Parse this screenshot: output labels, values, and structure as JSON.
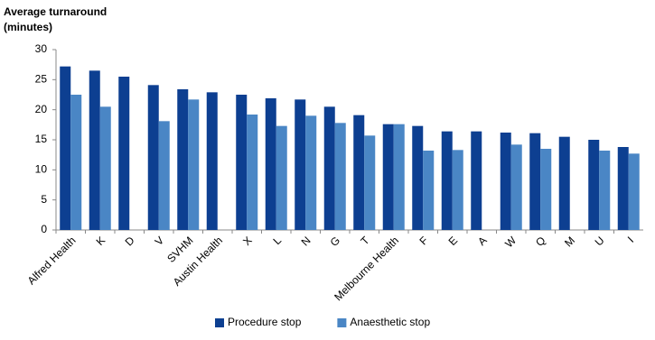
{
  "chart_data": {
    "type": "bar",
    "y_label": [
      "Average turnaround",
      "(minutes)"
    ],
    "categories": [
      "Alfred Health",
      "K",
      "D",
      "V",
      "SVHM",
      "Austin Health",
      "X",
      "L",
      "N",
      "G",
      "T",
      "Melbourne Health",
      "F",
      "E",
      "A",
      "W",
      "Q",
      "M",
      "U",
      "I"
    ],
    "series": [
      {
        "name": "Procedure stop",
        "color": "#0d3f91",
        "values": [
          27.2,
          26.5,
          25.5,
          24.1,
          23.4,
          22.9,
          22.5,
          21.9,
          21.7,
          20.5,
          19.1,
          17.6,
          17.3,
          16.4,
          16.4,
          16.2,
          16.1,
          15.5,
          15.0,
          13.8
        ]
      },
      {
        "name": "Anaesthetic stop",
        "color": "#4a86c5",
        "values": [
          22.5,
          20.5,
          null,
          18.1,
          21.7,
          null,
          19.2,
          17.3,
          19.0,
          17.8,
          15.7,
          17.6,
          13.2,
          13.3,
          null,
          14.2,
          13.5,
          null,
          13.2,
          12.7
        ]
      }
    ],
    "ylim": [
      0,
      30
    ],
    "yticks": [
      0,
      5,
      10,
      15,
      20,
      25,
      30
    ],
    "grid": false,
    "legend": "bottom"
  }
}
